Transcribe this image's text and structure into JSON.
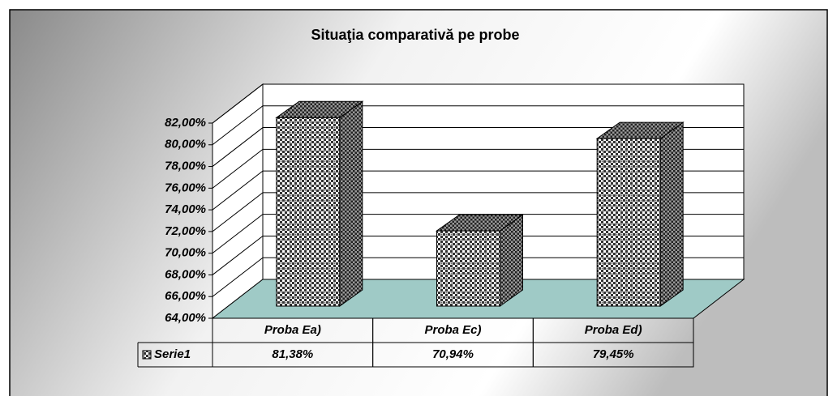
{
  "chart_data": {
    "type": "bar3d",
    "title": "Situaţia comparativă pe probe",
    "categories": [
      "Proba Ea)",
      "Proba Ec)",
      "Proba Ed)"
    ],
    "series": [
      {
        "name": "Serie1",
        "values": [
          81.38,
          70.94,
          79.45
        ],
        "value_labels": [
          "81,38%",
          "70,94%",
          "79,45%"
        ]
      }
    ],
    "ylim": [
      64,
      82
    ],
    "yticks": [
      {
        "value": 64,
        "label": "64,00%"
      },
      {
        "value": 66,
        "label": "66,00%"
      },
      {
        "value": 68,
        "label": "68,00%"
      },
      {
        "value": 70,
        "label": "70,00%"
      },
      {
        "value": 72,
        "label": "72,00%"
      },
      {
        "value": 74,
        "label": "74,00%"
      },
      {
        "value": 76,
        "label": "76,00%"
      },
      {
        "value": 78,
        "label": "78,00%"
      },
      {
        "value": 80,
        "label": "80,00%"
      },
      {
        "value": 82,
        "label": "82,00%"
      }
    ],
    "grid": true,
    "data_table": true
  }
}
